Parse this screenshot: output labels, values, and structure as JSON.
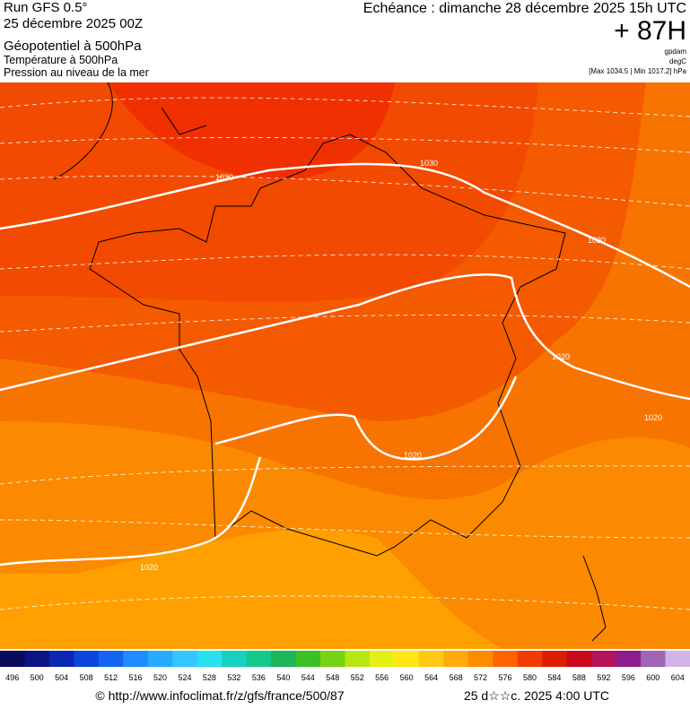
{
  "header": {
    "run": "Run GFS 0.5°",
    "run_date": "25 décembre 2025 00Z",
    "field_1": "Géopotentiel à 500hPa",
    "field_2": "Température à 500hPa",
    "field_3": "Pression au niveau de la mer",
    "forecast": "Echéance : dimanche 28 décembre 2025 15h UTC",
    "lead": "+ 87H",
    "unit_1": "gpdam",
    "unit_2": "degC",
    "range": "[Max 1034.5 | Min 1017.2] hPa"
  },
  "map": {
    "isobar_labels": [
      "1030",
      "1030",
      "1030",
      "1020",
      "1020",
      "1020",
      "1020"
    ]
  },
  "colorbar": {
    "labels": [
      "496",
      "500",
      "504",
      "508",
      "512",
      "516",
      "520",
      "524",
      "528",
      "532",
      "536",
      "540",
      "544",
      "548",
      "552",
      "556",
      "560",
      "564",
      "568",
      "572",
      "576",
      "580",
      "584",
      "588",
      "592",
      "596",
      "600",
      "604"
    ],
    "colors": [
      "#0a0a5a",
      "#0a1482",
      "#0a28b4",
      "#0a46dc",
      "#1464f0",
      "#1e8cff",
      "#28aaff",
      "#32c8ff",
      "#28e0f0",
      "#14d2be",
      "#14c88c",
      "#1eb45a",
      "#3cbe28",
      "#78d214",
      "#b4e614",
      "#e6f014",
      "#ffe614",
      "#ffc814",
      "#ffaa0a",
      "#ff8c00",
      "#ff6400",
      "#f03c00",
      "#dc1e00",
      "#c80a1e",
      "#b4145a",
      "#8c1e8c",
      "#a064b4",
      "#d2b4e6"
    ]
  },
  "footer": {
    "url": "© http://www.infoclimat.fr/z/gfs/france/500/87",
    "date": "25 d☆☆c. 2025  4:00 UTC"
  }
}
